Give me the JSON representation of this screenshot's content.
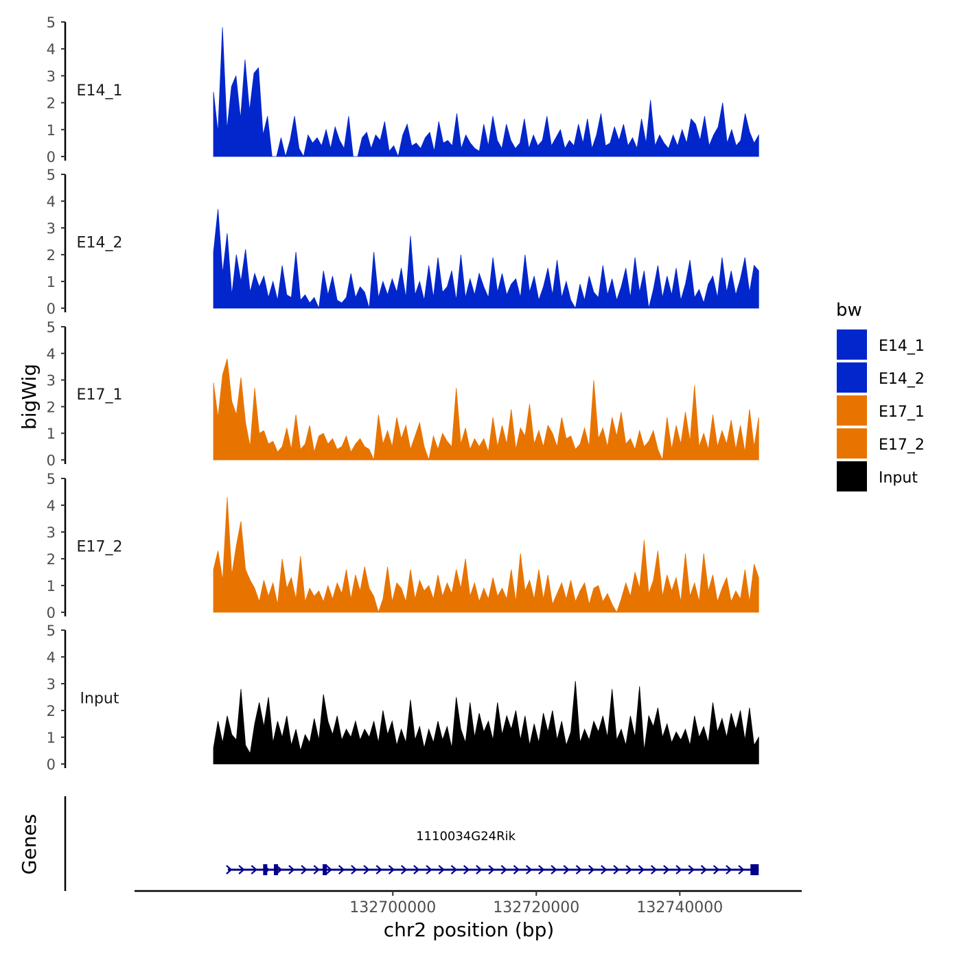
{
  "chart_data": {
    "type": "area",
    "title": "",
    "ylabel": "bigWig",
    "xlabel": "chr2 position (bp)",
    "chromosome": "chr2",
    "x_range": [
      132664000,
      132757000
    ],
    "x_ticks": [
      132700000,
      132720000,
      132740000
    ],
    "x_tick_labels": [
      "132700000",
      "132720000",
      "132740000"
    ],
    "ylim": [
      0,
      5
    ],
    "y_ticks": [
      0,
      1,
      2,
      3,
      4,
      5
    ],
    "y_tick_labels": [
      "0",
      "1",
      "2",
      "3",
      "4",
      "5"
    ],
    "legend": {
      "title": "bw",
      "position": "right",
      "items": [
        {
          "label": "E14_1",
          "color": "#0026CC"
        },
        {
          "label": "E14_2",
          "color": "#0026CC"
        },
        {
          "label": "E17_1",
          "color": "#E87400"
        },
        {
          "label": "E17_2",
          "color": "#E87400"
        },
        {
          "label": "Input",
          "color": "#000000"
        }
      ]
    },
    "track_x_range": [
      132675000,
      132751000
    ],
    "series": [
      {
        "name": "E14_1",
        "color": "#0026CC",
        "max_value": 4.8,
        "values": [
          2.4,
          0.9,
          4.8,
          1.0,
          2.6,
          3.0,
          1.4,
          3.6,
          1.7,
          3.1,
          3.3,
          0.8,
          1.5,
          0,
          0,
          0.7,
          0,
          0.6,
          1.5,
          0.3,
          0,
          0.8,
          0.5,
          0.7,
          0.4,
          1.0,
          0.3,
          1.1,
          0.6,
          0.3,
          1.5,
          0,
          0,
          0.7,
          0.9,
          0.3,
          0.8,
          0.6,
          1.3,
          0.2,
          0.4,
          0,
          0.8,
          1.2,
          0.4,
          0.5,
          0.3,
          0.7,
          0.9,
          0.2,
          1.3,
          0.5,
          0.6,
          0.4,
          1.6,
          0.3,
          0.8,
          0.5,
          0.3,
          0.2,
          1.2,
          0.4,
          1.5,
          0.6,
          0.3,
          1.2,
          0.6,
          0.3,
          0.5,
          1.4,
          0.3,
          0.8,
          0.4,
          0.6,
          1.5,
          0.4,
          0.7,
          1.0,
          0.3,
          0.6,
          0.4,
          1.2,
          0.5,
          1.4,
          0.3,
          0.8,
          1.6,
          0.4,
          0.5,
          1.1,
          0.6,
          1.2,
          0.4,
          0.7,
          0.3,
          1.4,
          0.5,
          2.1,
          0.4,
          0.8,
          0.5,
          0.3,
          0.8,
          0.4,
          1.0,
          0.5,
          1.4,
          1.2,
          0.6,
          1.5,
          0.4,
          0.8,
          1.1,
          2.0,
          0.5,
          1.0,
          0.4,
          0.6,
          1.6,
          0.9,
          0.5,
          0.8
        ]
      },
      {
        "name": "E14_2",
        "color": "#0026CC",
        "max_value": 3.7,
        "values": [
          2.1,
          3.7,
          1.3,
          2.8,
          0.5,
          2.0,
          1.0,
          2.2,
          0.6,
          1.3,
          0.8,
          1.2,
          0.4,
          1.0,
          0.3,
          1.6,
          0.5,
          0.4,
          2.1,
          0.3,
          0.5,
          0.2,
          0.4,
          0,
          1.4,
          0.5,
          1.2,
          0.3,
          0.2,
          0.4,
          1.3,
          0.4,
          0.8,
          0.6,
          0,
          2.1,
          0.4,
          1.0,
          0.5,
          1.1,
          0.6,
          1.5,
          0.4,
          2.7,
          0.5,
          1.0,
          0.3,
          1.6,
          0.4,
          1.9,
          0.6,
          0.8,
          1.4,
          0.3,
          2.0,
          0.4,
          1.1,
          0.5,
          1.3,
          0.8,
          0.4,
          1.9,
          0.6,
          1.3,
          0.5,
          0.9,
          1.1,
          0.4,
          2.0,
          0.6,
          1.2,
          0.3,
          0.8,
          1.5,
          0.5,
          1.8,
          0.4,
          1.0,
          0.3,
          0,
          0.9,
          0.3,
          1.2,
          0.6,
          0.4,
          1.6,
          0.5,
          1.1,
          0.3,
          0.8,
          1.5,
          0.4,
          1.9,
          0.6,
          1.4,
          0,
          0.7,
          1.6,
          0.4,
          1.2,
          0.5,
          1.5,
          0.3,
          0.9,
          1.8,
          0.4,
          0.7,
          0.2,
          0.9,
          1.2,
          0.4,
          1.9,
          0.6,
          1.4,
          0.5,
          1.1,
          1.9,
          0.6,
          1.6,
          1.4
        ]
      },
      {
        "name": "E17_1",
        "color": "#E87400",
        "max_value": 3.8,
        "values": [
          2.9,
          1.6,
          3.2,
          3.8,
          2.2,
          1.7,
          3.1,
          1.4,
          0.5,
          2.7,
          1.0,
          1.1,
          0.6,
          0.7,
          0.3,
          0.5,
          1.2,
          0.4,
          1.7,
          0.4,
          0.6,
          1.3,
          0.3,
          0.9,
          1.0,
          0.6,
          0.8,
          0.4,
          0.5,
          0.9,
          0.3,
          0.6,
          0.8,
          0.5,
          0.4,
          0,
          1.7,
          0.6,
          1.1,
          0.5,
          1.6,
          0.8,
          1.3,
          0.4,
          0.9,
          1.4,
          0.5,
          0,
          0.9,
          0.4,
          1.0,
          0.7,
          0.5,
          2.7,
          0.6,
          1.2,
          0.4,
          0.8,
          0.5,
          0.8,
          0.3,
          1.6,
          0.5,
          1.3,
          0.6,
          1.9,
          0.4,
          1.2,
          0.9,
          2.1,
          0.6,
          1.1,
          0.5,
          1.3,
          1.0,
          0.5,
          1.6,
          0.8,
          0.9,
          0.4,
          0.6,
          1.2,
          0.5,
          3.0,
          0.8,
          1.2,
          0.5,
          1.6,
          0.9,
          1.8,
          0.6,
          0.8,
          0.4,
          1.1,
          0.5,
          0.7,
          1.1,
          0.4,
          0,
          1.6,
          0.4,
          1.3,
          0.6,
          1.8,
          0.7,
          2.8,
          0.5,
          1.0,
          0.4,
          1.7,
          0.5,
          1.1,
          0.6,
          1.5,
          0.4,
          1.3,
          0.3,
          1.9,
          0.5,
          1.6
        ]
      },
      {
        "name": "E17_2",
        "color": "#E87400",
        "max_value": 4.3,
        "values": [
          1.6,
          2.3,
          1.2,
          4.3,
          1.4,
          2.5,
          3.4,
          1.6,
          1.2,
          0.9,
          0.4,
          1.2,
          0.6,
          1.1,
          0.3,
          2.0,
          0.9,
          1.3,
          0.5,
          2.1,
          0.4,
          0.9,
          0.6,
          0.8,
          0.4,
          1.0,
          0.5,
          1.1,
          0.7,
          1.6,
          0.5,
          1.4,
          0.8,
          1.7,
          0.9,
          0.6,
          0,
          0.5,
          1.7,
          0.4,
          1.1,
          0.9,
          0.4,
          1.6,
          0.5,
          1.2,
          0.8,
          1.0,
          0.5,
          1.4,
          0.6,
          1.1,
          0.7,
          1.6,
          0.9,
          2.0,
          0.6,
          1.1,
          0.4,
          0.9,
          0.5,
          1.3,
          0.6,
          0.9,
          0.5,
          1.6,
          0.4,
          2.2,
          0.8,
          1.2,
          0.5,
          1.6,
          0.5,
          1.4,
          0.3,
          0.7,
          1.1,
          0.5,
          1.2,
          0.4,
          0.8,
          1.1,
          0.3,
          0.9,
          1.0,
          0.4,
          0.7,
          0.3,
          0,
          0.5,
          1.1,
          0.6,
          1.5,
          0.9,
          2.7,
          0.7,
          1.2,
          2.3,
          0.6,
          1.4,
          0.8,
          1.3,
          0.4,
          2.2,
          0.6,
          1.1,
          0.4,
          2.2,
          0.8,
          1.4,
          0.4,
          0.9,
          1.3,
          0.4,
          0.8,
          0.5,
          1.6,
          0.4,
          1.8,
          1.3
        ]
      },
      {
        "name": "Input",
        "color": "#000000",
        "max_value": 3.1,
        "values": [
          0.6,
          1.6,
          0.8,
          1.8,
          1.1,
          0.9,
          2.8,
          0.7,
          0.4,
          1.5,
          2.3,
          1.4,
          2.5,
          0.8,
          1.6,
          1.0,
          1.8,
          0.7,
          1.3,
          0.5,
          1.1,
          0.8,
          1.7,
          0.9,
          2.6,
          1.6,
          1.1,
          1.8,
          0.9,
          1.3,
          1.0,
          1.6,
          0.9,
          1.3,
          1.0,
          1.6,
          0.8,
          2.0,
          1.1,
          1.6,
          0.7,
          1.3,
          0.8,
          2.4,
          0.9,
          1.4,
          0.6,
          1.3,
          0.8,
          1.6,
          0.9,
          1.4,
          0.6,
          2.5,
          1.3,
          0.8,
          2.3,
          1.0,
          1.9,
          1.2,
          1.6,
          0.9,
          2.3,
          1.1,
          1.8,
          1.3,
          2.0,
          0.9,
          1.8,
          0.7,
          1.5,
          0.8,
          1.9,
          1.2,
          2.0,
          0.9,
          1.6,
          0.7,
          1.2,
          3.1,
          0.8,
          1.3,
          0.9,
          1.6,
          1.2,
          1.8,
          1.0,
          2.8,
          0.9,
          1.3,
          0.7,
          1.8,
          1.0,
          2.9,
          0.5,
          1.8,
          1.4,
          2.1,
          1.0,
          1.5,
          0.8,
          1.2,
          0.9,
          1.3,
          0.7,
          1.8,
          1.0,
          1.4,
          0.8,
          2.3,
          1.2,
          1.7,
          1.0,
          1.9,
          1.3,
          2.0,
          0.9,
          2.1,
          0.7,
          1.0
        ]
      }
    ],
    "genes": {
      "ylabel": "Genes",
      "items": [
        {
          "name": "1110034G24Rik",
          "start": 132677000,
          "end": 132751000,
          "strand": "+",
          "exons": [
            132682500,
            132684000,
            132690800,
            132751000
          ]
        }
      ]
    }
  }
}
